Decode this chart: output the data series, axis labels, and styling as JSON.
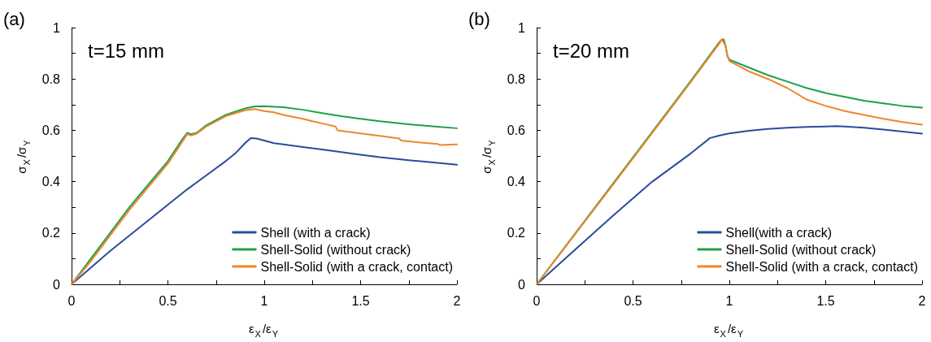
{
  "chart_data": [
    {
      "type": "line",
      "title": "(a)",
      "annotations": [
        "t=15 mm"
      ],
      "xlabel": "ε$_{X}$/ε$_{Y}$",
      "ylabel": "σ$_{X}$/σ$_{Y}$",
      "xlim": [
        0,
        2
      ],
      "xticks": [
        0,
        {
          "value": 0.25,
          "label": null
        },
        0.5,
        {
          "value": 0.75,
          "label": null
        },
        1,
        {
          "value": 1.25,
          "label": null
        },
        1.5,
        {
          "value": 1.75,
          "label": null
        },
        2
      ],
      "ylim": [
        0,
        1
      ],
      "yticks": [
        0,
        {
          "value": 0.1,
          "label": null
        },
        0.2,
        {
          "value": 0.3,
          "label": null
        },
        0.4,
        {
          "value": 0.5,
          "label": null
        },
        0.6,
        {
          "value": 0.7,
          "label": null
        },
        0.8,
        {
          "value": 0.9,
          "label": null
        },
        1
      ],
      "grid": false,
      "legend": "bottom right",
      "marker": "none",
      "line_style": "solid",
      "series": [
        {
          "name": "Shell (with a crack)",
          "color": "#2a4c9c",
          "x": [
            0,
            0.1,
            0.2,
            0.3,
            0.4,
            0.5,
            0.6,
            0.7,
            0.8,
            0.85,
            0.9,
            0.93,
            0.96,
            1.0,
            1.05,
            1.1,
            1.2,
            1.3,
            1.4,
            1.5,
            1.6,
            1.7,
            1.8,
            1.9,
            2.0
          ],
          "values": [
            0,
            0.065,
            0.13,
            0.19,
            0.25,
            0.31,
            0.37,
            0.425,
            0.48,
            0.51,
            0.55,
            0.57,
            0.568,
            0.56,
            0.55,
            0.545,
            0.535,
            0.525,
            0.515,
            0.505,
            0.495,
            0.487,
            0.48,
            0.473,
            0.466
          ]
        },
        {
          "name": "Shell-Solid (without crack)",
          "color": "#1ea04a",
          "x": [
            0,
            0.1,
            0.2,
            0.3,
            0.4,
            0.5,
            0.57,
            0.6,
            0.62,
            0.65,
            0.7,
            0.8,
            0.9,
            0.95,
            1.0,
            1.1,
            1.2,
            1.3,
            1.4,
            1.5,
            1.6,
            1.7,
            1.8,
            1.9,
            2.0
          ],
          "values": [
            0,
            0.1,
            0.2,
            0.3,
            0.39,
            0.48,
            0.56,
            0.59,
            0.585,
            0.59,
            0.62,
            0.66,
            0.685,
            0.693,
            0.694,
            0.69,
            0.68,
            0.667,
            0.655,
            0.645,
            0.635,
            0.627,
            0.62,
            0.614,
            0.608
          ]
        },
        {
          "name": "Shell-Solid (with a crack, contact)",
          "color": "#f0862a",
          "x": [
            0,
            0.1,
            0.2,
            0.3,
            0.4,
            0.5,
            0.57,
            0.6,
            0.62,
            0.65,
            0.7,
            0.8,
            0.9,
            0.95,
            1.0,
            1.05,
            1.1,
            1.2,
            1.25,
            1.3,
            1.37,
            1.38,
            1.5,
            1.6,
            1.7,
            1.71,
            1.8,
            1.9,
            1.91,
            2.0
          ],
          "values": [
            0,
            0.09,
            0.19,
            0.29,
            0.38,
            0.47,
            0.55,
            0.585,
            0.58,
            0.587,
            0.615,
            0.655,
            0.678,
            0.683,
            0.675,
            0.67,
            0.66,
            0.645,
            0.635,
            0.627,
            0.615,
            0.6,
            0.588,
            0.578,
            0.568,
            0.56,
            0.553,
            0.547,
            0.543,
            0.545
          ]
        }
      ]
    },
    {
      "type": "line",
      "title": "(b)",
      "annotations": [
        "t=20 mm"
      ],
      "xlabel": "ε$_{X}$/ε$_{Y}$",
      "ylabel": "σ$_{X}$/σ$_{Y}$",
      "xlim": [
        0,
        2
      ],
      "xticks": [
        0,
        {
          "value": 0.25,
          "label": null
        },
        0.5,
        {
          "value": 0.75,
          "label": null
        },
        1,
        {
          "value": 1.25,
          "label": null
        },
        1.5,
        {
          "value": 1.75,
          "label": null
        },
        2
      ],
      "ylim": [
        0,
        1
      ],
      "yticks": [
        0,
        {
          "value": 0.1,
          "label": null
        },
        0.2,
        {
          "value": 0.3,
          "label": null
        },
        0.4,
        {
          "value": 0.5,
          "label": null
        },
        0.6,
        {
          "value": 0.7,
          "label": null
        },
        0.8,
        {
          "value": 0.9,
          "label": null
        },
        1
      ],
      "grid": false,
      "legend": "bottom right",
      "marker": "none",
      "line_style": "solid",
      "series": [
        {
          "name": "Shell(with a crack)",
          "color": "#2a4c9c",
          "x": [
            0,
            0.2,
            0.4,
            0.6,
            0.8,
            0.9,
            0.95,
            1.0,
            1.1,
            1.2,
            1.3,
            1.4,
            1.5,
            1.55,
            1.6,
            1.7,
            1.8,
            1.9,
            2.0
          ],
          "values": [
            0,
            0.135,
            0.27,
            0.4,
            0.51,
            0.57,
            0.58,
            0.588,
            0.598,
            0.605,
            0.61,
            0.613,
            0.615,
            0.616,
            0.615,
            0.61,
            0.603,
            0.595,
            0.587
          ]
        },
        {
          "name": "Shell-Solid (without crack)",
          "color": "#1ea04a",
          "x": [
            0,
            0.2,
            0.4,
            0.6,
            0.8,
            0.95,
            0.97,
            0.98,
            0.99,
            1.0,
            1.1,
            1.2,
            1.3,
            1.4,
            1.5,
            1.6,
            1.7,
            1.8,
            1.9,
            2.0
          ],
          "values": [
            0,
            0.198,
            0.396,
            0.594,
            0.792,
            0.945,
            0.955,
            0.93,
            0.89,
            0.875,
            0.845,
            0.815,
            0.79,
            0.765,
            0.745,
            0.73,
            0.715,
            0.705,
            0.695,
            0.688
          ]
        },
        {
          "name": "Shell-Solid (with a crack, contact)",
          "color": "#f0862a",
          "x": [
            0,
            0.2,
            0.4,
            0.6,
            0.8,
            0.95,
            0.96,
            0.98,
            0.99,
            1.0,
            1.05,
            1.1,
            1.2,
            1.3,
            1.4,
            1.5,
            1.6,
            1.7,
            1.8,
            1.9,
            2.0
          ],
          "values": [
            0,
            0.196,
            0.392,
            0.59,
            0.788,
            0.94,
            0.955,
            0.93,
            0.89,
            0.87,
            0.85,
            0.83,
            0.8,
            0.765,
            0.72,
            0.695,
            0.675,
            0.66,
            0.645,
            0.632,
            0.622
          ]
        }
      ]
    }
  ]
}
